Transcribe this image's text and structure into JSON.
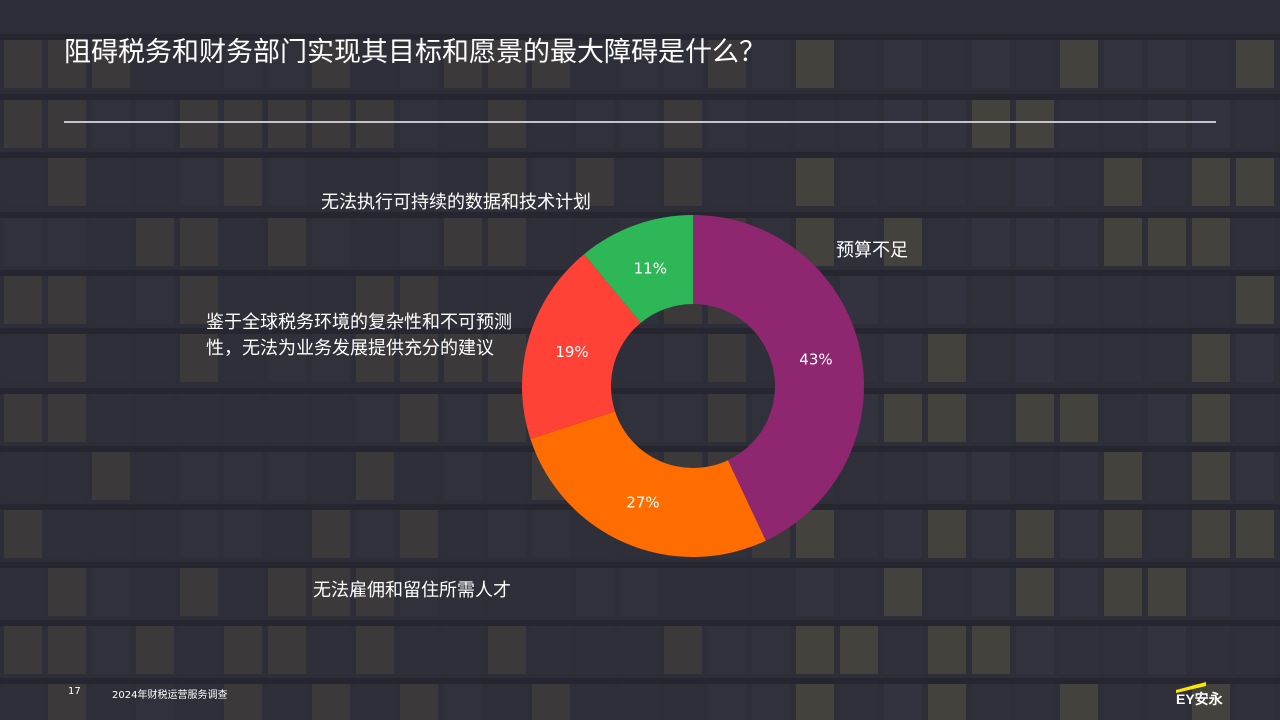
{
  "slide": {
    "title": "阻碍税务和财务部门实现其目标和愿景的最大障碍是什么？",
    "page_number": "17",
    "footer_text": "2024年财税运营服务调查",
    "logo_text": "EY安永"
  },
  "colors": {
    "background": "#2e2e38",
    "rule": "#c4c4cd",
    "logo_yellow": "#ffe600"
  },
  "chart_data": {
    "type": "pie",
    "subtype": "donut",
    "categories": [
      "预算不足",
      "无法雇佣和留住所需人才",
      "鉴于全球税务环境的复杂性和不可预测性，无法为业务发展提供充分的建议",
      "无法执行可持续的数据和技术计划"
    ],
    "values": [
      43,
      27,
      19,
      11
    ],
    "value_labels": [
      "43%",
      "27%",
      "19%",
      "11%"
    ],
    "colors": [
      "#8f2670",
      "#ff6d00",
      "#ff4136",
      "#2db757"
    ],
    "legend": "none"
  }
}
